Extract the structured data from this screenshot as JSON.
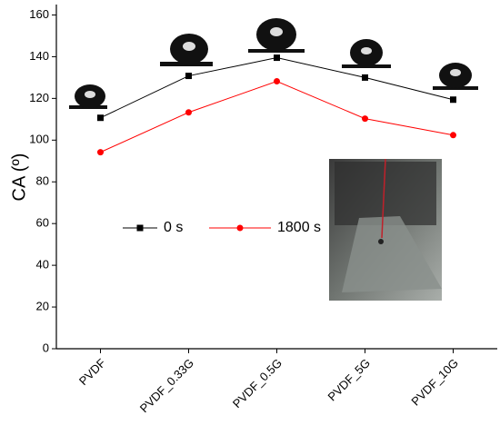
{
  "chart_data": {
    "type": "line",
    "y_label": "CA (º)",
    "categories": [
      "PVDF",
      "PVDF_0.33G",
      "PVDF_0.5G",
      "PVDF_5G",
      "PVDF_10G"
    ],
    "series": [
      {
        "name": "0 s",
        "color": "#000000",
        "marker": "square",
        "values": [
          110.7,
          130.8,
          139.5,
          130,
          119.4
        ]
      },
      {
        "name": "1800 s",
        "color": "#ff0000",
        "marker": "circle",
        "values": [
          94.2,
          113.3,
          128.2,
          110.3,
          102.4
        ]
      }
    ],
    "ylim": [
      0,
      165
    ],
    "yticks": [
      0,
      20,
      40,
      60,
      80,
      100,
      120,
      140,
      160
    ],
    "grid": false
  }
}
